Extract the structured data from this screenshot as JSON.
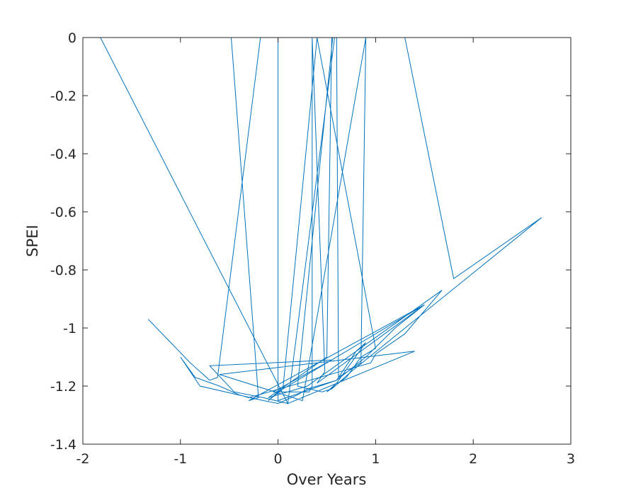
{
  "chart_data": {
    "type": "line",
    "title": "",
    "xlabel": "Over Years",
    "ylabel": "SPEI",
    "xlim": [
      -2,
      3
    ],
    "ylim": [
      -1.4,
      0
    ],
    "xticks": [
      -2,
      -1,
      0,
      1,
      2,
      3
    ],
    "yticks": [
      0,
      -0.2,
      -0.4,
      -0.6,
      -0.8,
      -1,
      -1.2,
      -1.4
    ],
    "xtick_labels": [
      "-2",
      "-1",
      "0",
      "1",
      "2",
      "3"
    ],
    "ytick_labels": [
      "0",
      "-0.2",
      "-0.4",
      "-0.6",
      "-0.8",
      "-1",
      "-1.2",
      "-1.4"
    ],
    "grid": false,
    "line_color": "#0072BD",
    "series": [
      {
        "x": [
          -1.33,
          -1.1,
          -0.9,
          -0.7,
          -0.62,
          -0.18,
          -0.48,
          -0.2,
          -0.3,
          1.5,
          1.2,
          0.9,
          0.6,
          0.3,
          0.2,
          0.0,
          -0.15,
          -0.8,
          -1.0,
          -0.85,
          -0.6,
          -0.4,
          -0.3,
          0.95,
          1.0,
          1.3,
          1.68,
          0.3,
          -0.1,
          0.5,
          0.55,
          0.6,
          0.62,
          0.85,
          0.9,
          0.25,
          -0.6,
          1.4,
          0.1,
          0.58,
          0.56,
          0.2,
          0.45,
          0.55,
          0.75,
          2.7,
          1.8,
          1.3,
          0.0,
          0.0,
          0.6,
          0.8,
          0.9,
          0.6,
          0.5,
          0.7,
          0.85,
          1.0,
          0.4,
          0.05,
          -0.1,
          0.0,
          1.5,
          0.4,
          0.48,
          0.35,
          0.35,
          0.32,
          -0.05,
          0.55,
          -0.7,
          -0.45,
          -0.15,
          0.1,
          -1.82,
          2.25
        ],
        "y": [
          -0.97,
          -1.05,
          -1.12,
          -1.18,
          -1.17,
          0.0,
          0.0,
          -1.24,
          -1.25,
          -0.92,
          -1.0,
          -1.1,
          -1.18,
          -1.21,
          -1.23,
          -1.26,
          -1.25,
          -1.2,
          -1.1,
          -1.17,
          -1.2,
          -1.23,
          -1.24,
          -1.12,
          -1.09,
          -1.02,
          -0.87,
          -1.2,
          -1.24,
          -1.1,
          0.0,
          0.0,
          -1.17,
          -1.12,
          0.0,
          -1.25,
          -1.16,
          -1.08,
          -1.26,
          0.0,
          0.0,
          -1.2,
          -1.22,
          -1.21,
          -1.15,
          -0.62,
          -0.83,
          0.0,
          0.0,
          -1.25,
          -1.18,
          -1.08,
          -1.05,
          -1.19,
          -1.22,
          -1.17,
          -1.1,
          -1.07,
          0.0,
          -1.21,
          -1.25,
          -1.22,
          -0.92,
          -1.19,
          -1.15,
          0.0,
          -1.2,
          -1.22,
          -1.22,
          -1.11,
          -1.13,
          -1.22,
          -1.24,
          -1.26,
          0.0,
          0.0
        ]
      }
    ]
  }
}
